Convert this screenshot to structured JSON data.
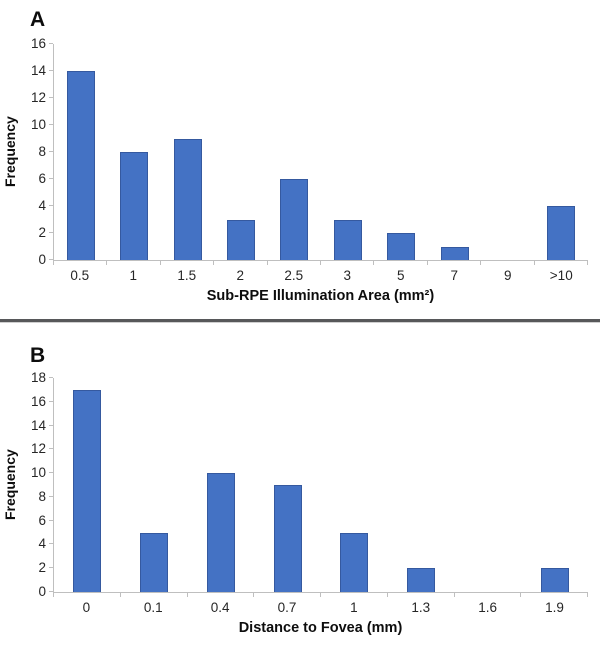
{
  "page": {
    "background_color": "#ffffff",
    "divider_color": "#57585A"
  },
  "chart_data": [
    {
      "panel": "A",
      "type": "bar",
      "categories": [
        "0.5",
        "1",
        "1.5",
        "2",
        "2.5",
        "3",
        "5",
        "7",
        "9",
        ">10"
      ],
      "values": [
        14,
        8,
        9,
        3,
        6,
        3,
        2,
        1,
        0,
        4
      ],
      "title": "",
      "xlabel": "Sub-RPE Illumination Area (mm²)",
      "ylabel": "Frequency",
      "ylim": [
        0,
        16
      ],
      "ytick_step": 2,
      "grid": false,
      "legend": "none",
      "bar_color": "#4472C4",
      "bar_border_color": "#35599F",
      "axis_color": "#BFBFBF"
    },
    {
      "panel": "B",
      "type": "bar",
      "categories": [
        "0",
        "0.1",
        "0.4",
        "0.7",
        "1",
        "1.3",
        "1.6",
        "1.9"
      ],
      "values": [
        17,
        5,
        10,
        9,
        5,
        2,
        0,
        2
      ],
      "title": "",
      "xlabel": "Distance to Fovea (mm)",
      "ylabel": "Frequency",
      "ylim": [
        0,
        18
      ],
      "ytick_step": 2,
      "grid": false,
      "legend": "none",
      "bar_color": "#4472C4",
      "bar_border_color": "#35599F",
      "axis_color": "#BFBFBF"
    }
  ]
}
